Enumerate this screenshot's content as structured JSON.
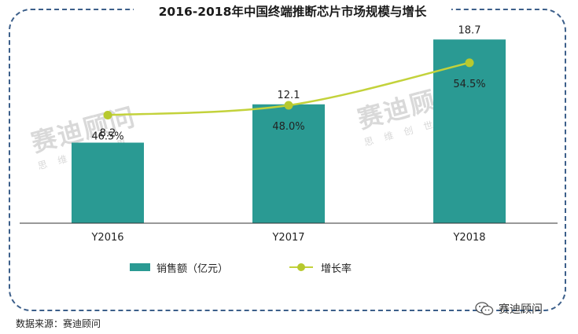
{
  "title": "2016-2018年中国终端推断芯片市场规模与增长",
  "watermark": {
    "main": "赛迪顾问",
    "sub": "思维创世界"
  },
  "chart_data": {
    "type": "bar",
    "categories": [
      "Y2016",
      "Y2017",
      "Y2018"
    ],
    "series": [
      {
        "name": "销售额（亿元）",
        "type": "bar",
        "values": [
          8.2,
          12.1,
          18.7
        ],
        "labels": [
          "8.2",
          "12.1",
          "18.7"
        ],
        "color": "#2a9a93"
      },
      {
        "name": "增长率",
        "type": "line",
        "values": [
          46.5,
          48.0,
          54.5
        ],
        "labels": [
          "46.5%",
          "48.0%",
          "54.5%"
        ],
        "color": "#c3d23b"
      }
    ],
    "ylim": [
      0,
      20
    ],
    "y2lim": [
      30,
      60
    ],
    "grid": false,
    "legend": "bottom"
  },
  "source": "数据来源：赛迪顾问",
  "brand": {
    "name": "赛迪顾问",
    "icon": "wechat-icon"
  }
}
